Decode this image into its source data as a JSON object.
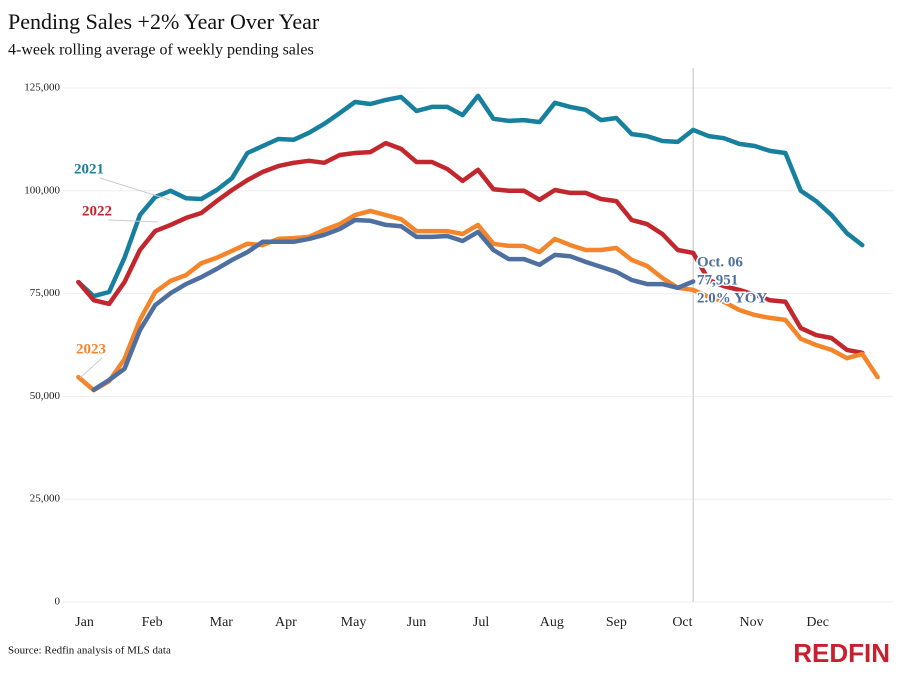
{
  "chart_data": {
    "type": "line",
    "title": "Pending Sales +2% Year Over Year",
    "subtitle": "4-week rolling average of weekly pending sales",
    "source": "Source: Redfin analysis of MLS data",
    "brand": "REDFIN",
    "x": [
      1,
      2,
      3,
      4,
      5,
      6,
      7,
      8,
      9,
      10,
      11,
      12,
      13,
      14,
      15,
      16,
      17,
      18,
      19,
      20,
      21,
      22,
      23,
      24,
      25,
      26,
      27,
      28,
      29,
      30,
      31,
      32,
      33,
      34,
      35,
      36,
      37,
      38,
      39,
      40,
      41,
      42,
      43,
      44,
      45,
      46,
      47,
      48,
      49,
      50,
      51,
      52,
      53
    ],
    "xlim": [
      0,
      54
    ],
    "xticks": [
      {
        "value": 1.4,
        "label": "Jan"
      },
      {
        "value": 5.8,
        "label": "Feb"
      },
      {
        "value": 10.3,
        "label": "Mar"
      },
      {
        "value": 14.5,
        "label": "Apr"
      },
      {
        "value": 18.9,
        "label": "May"
      },
      {
        "value": 23.0,
        "label": "Jun"
      },
      {
        "value": 27.2,
        "label": "Jul"
      },
      {
        "value": 31.8,
        "label": "Aug"
      },
      {
        "value": 36.0,
        "label": "Sep"
      },
      {
        "value": 40.3,
        "label": "Oct"
      },
      {
        "value": 44.8,
        "label": "Nov"
      },
      {
        "value": 49.1,
        "label": "Dec"
      }
    ],
    "ylim": [
      0,
      125000
    ],
    "yticks": [
      0,
      {
        "value": 25000,
        "label": "25,000"
      },
      {
        "value": 50000,
        "label": "50,000"
      },
      {
        "value": 75000,
        "label": "75,000"
      },
      {
        "value": 100000,
        "label": "100,000"
      },
      {
        "value": 125000,
        "label": "125,000"
      }
    ],
    "grid": true,
    "series": [
      {
        "name": "2021",
        "color": "#17809e",
        "values": [
          77800,
          74400,
          75400,
          83700,
          94100,
          98500,
          100000,
          98200,
          98000,
          100200,
          103100,
          109200,
          110900,
          112600,
          112400,
          114100,
          116300,
          118900,
          121600,
          121100,
          122100,
          122800,
          119400,
          120400,
          120400,
          118400,
          123100,
          117500,
          117000,
          117200,
          116700,
          121400,
          120400,
          119700,
          117200,
          117700,
          113800,
          113300,
          112100,
          111900,
          114800,
          113300,
          112800,
          111400,
          110900,
          109700,
          109200,
          100000,
          97500,
          94100,
          89700,
          86800,
          null
        ]
      },
      {
        "name": "2022",
        "color": "#c1272d",
        "values": [
          77800,
          73400,
          72500,
          77800,
          85600,
          90200,
          91700,
          93400,
          94600,
          97500,
          100200,
          102600,
          104600,
          106000,
          106800,
          107300,
          106800,
          108700,
          109200,
          109400,
          111600,
          110200,
          107000,
          107000,
          105300,
          102400,
          105100,
          100400,
          100000,
          100000,
          97800,
          100200,
          99500,
          99500,
          98000,
          97500,
          92900,
          91900,
          89500,
          85600,
          84900,
          78300,
          76800,
          75900,
          74700,
          73400,
          73000,
          66600,
          64900,
          64200,
          61300,
          60600,
          null
        ]
      },
      {
        "name": "2023",
        "color": "#f5852a",
        "values": [
          54700,
          51500,
          53700,
          59100,
          68600,
          75400,
          78100,
          79500,
          82400,
          83700,
          85400,
          87100,
          86800,
          88300,
          88500,
          88800,
          90500,
          91900,
          94100,
          95100,
          94100,
          93100,
          90200,
          90200,
          90200,
          89500,
          91700,
          87100,
          86600,
          86600,
          85100,
          88300,
          86800,
          85600,
          85600,
          86100,
          83200,
          81700,
          78800,
          76400,
          75900,
          74200,
          73000,
          71000,
          69800,
          69100,
          68600,
          64000,
          62500,
          61300,
          59300,
          60300,
          54700
        ]
      },
      {
        "color": "#4e6f9f",
        "values": [
          null,
          51600,
          54000,
          56700,
          66100,
          72200,
          75100,
          77300,
          79000,
          81000,
          83200,
          85100,
          87600,
          87600,
          87600,
          88300,
          89300,
          90700,
          92900,
          92700,
          91700,
          91400,
          88800,
          88800,
          89000,
          87800,
          90000,
          85600,
          83400,
          83400,
          82000,
          84400,
          84100,
          82700,
          81500,
          80300,
          78300,
          77300,
          77300,
          76400,
          77951,
          null,
          null,
          null,
          null,
          null,
          null,
          null,
          null,
          null,
          null,
          null,
          null
        ]
      }
    ],
    "annotation": {
      "lines": [
        "Oct. 06",
        "77,951",
        "2.0% YOY"
      ]
    }
  }
}
